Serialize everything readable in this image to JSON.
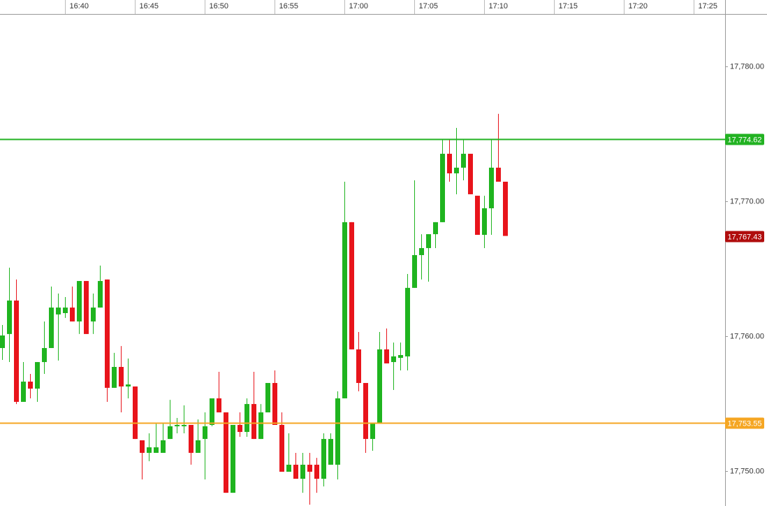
{
  "chart_data": {
    "type": "candlestick",
    "x": [
      995.5,
      996,
      996.5,
      997,
      997.5,
      998,
      998.5,
      999,
      999.5,
      1000,
      1000.5,
      1001,
      1001.5,
      1002,
      1002.5,
      1003,
      1003.5,
      1004,
      1004.5,
      1005,
      1005.5,
      1006,
      1006.5,
      1007,
      1007.5,
      1008,
      1008.5,
      1009,
      1009.5,
      1010,
      1010.5,
      1011,
      1011.5,
      1012,
      1012.5,
      1013,
      1013.5,
      1014,
      1014.5,
      1015,
      1015.5,
      1016,
      1016.5,
      1017,
      1017.5,
      1018,
      1018.5,
      1019,
      1019.5,
      1020,
      1020.5,
      1021,
      1021.5,
      1022,
      1022.5,
      1023,
      1023.5,
      1024,
      1024.5,
      1025,
      1025.5,
      1026,
      1026.5,
      1027,
      1027.5,
      1028,
      1028.5,
      1029,
      1029.5,
      1030,
      1030.5,
      1031,
      1031.5
    ],
    "open": [
      17759.12,
      17760.16,
      17762.64,
      17755.13,
      17756.63,
      17756.11,
      17758.08,
      17759.12,
      17761.61,
      17761.71,
      17762.12,
      17761.09,
      17764.09,
      17761.09,
      17762.12,
      17764.2,
      17756.17,
      17757.72,
      17756.27,
      17756.27,
      17752.28,
      17751.35,
      17751.35,
      17751.35,
      17752.38,
      17753.32,
      17753.32,
      17753.42,
      17751.35,
      17752.38,
      17753.42,
      17755.39,
      17754.35,
      17748.39,
      17753.42,
      17752.9,
      17754.97,
      17752.38,
      17754.35,
      17756.53,
      17753.42,
      17749.95,
      17750.47,
      17749.43,
      17750.47,
      17750.47,
      17749.43,
      17750.47,
      17750.47,
      17755.39,
      17768.45,
      17759.02,
      17756.53,
      17752.38,
      17753.58,
      17759.02,
      17758.08,
      17758.39,
      17758.5,
      17763.58,
      17766.01,
      17766.53,
      17767.56,
      17768.45,
      17773.52,
      17772.07,
      17772.49,
      17773.52,
      17770.41,
      17767.51,
      17769.48,
      17772.49,
      17771.45
    ],
    "high": [
      17760.83,
      17765.08,
      17764.2,
      17758.08,
      17757.2,
      17758.08,
      17761.09,
      17763.68,
      17763.16,
      17762.9,
      17763.68,
      17764.09,
      17764.09,
      17763.16,
      17765.23,
      17764.2,
      17758.76,
      17759.27,
      17758.34,
      17756.27,
      17752.28,
      17752.8,
      17753.58,
      17753.58,
      17755.28,
      17753.94,
      17754.87,
      17753.42,
      17753.83,
      17754.35,
      17755.39,
      17757.36,
      17754.35,
      17753.42,
      17754.35,
      17755.39,
      17757.36,
      17754.97,
      17756.53,
      17757.46,
      17754.35,
      17752.8,
      17751.35,
      17751.35,
      17751.35,
      17750.98,
      17752.8,
      17752.8,
      17755.91,
      17771.45,
      17768.45,
      17760.31,
      17756.53,
      17753.58,
      17760.31,
      17760.57,
      17759.53,
      17759.53,
      17764.61,
      17771.55,
      17767.56,
      17767.56,
      17768.45,
      17774.56,
      17774.56,
      17775.44,
      17774.56,
      17773.52,
      17770.41,
      17770.41,
      17774.56,
      17776.48,
      17771.45
    ],
    "low": [
      17758.24,
      17758.08,
      17754.97,
      17755.13,
      17755.39,
      17755.13,
      17757.2,
      17759.12,
      17758.19,
      17761.35,
      17761.09,
      17760.16,
      17760.16,
      17760.16,
      17762.12,
      17755.13,
      17756.17,
      17754.35,
      17755.39,
      17752.38,
      17749.38,
      17750.73,
      17751.35,
      17751.35,
      17752.38,
      17752.8,
      17752.8,
      17750.47,
      17751.35,
      17749.38,
      17753.32,
      17754.35,
      17748.39,
      17748.39,
      17752.54,
      17752.54,
      17752.38,
      17752.38,
      17754.35,
      17753.42,
      17749.95,
      17749.95,
      17749.43,
      17748.39,
      17747.51,
      17748.39,
      17748.86,
      17750.47,
      17749.38,
      17755.39,
      17759.02,
      17755.91,
      17751.35,
      17751.5,
      17753.58,
      17757.98,
      17756.01,
      17757.46,
      17757.46,
      17763.58,
      17764.2,
      17764.04,
      17766.53,
      17768.45,
      17771.45,
      17770.52,
      17771.55,
      17770.52,
      17767.51,
      17766.53,
      17767.51,
      17771.45,
      17767.51
    ],
    "close": [
      17760.05,
      17762.64,
      17755.13,
      17756.63,
      17756.11,
      17758.08,
      17759.12,
      17762.12,
      17762.12,
      17762.12,
      17761.09,
      17764.09,
      17760.16,
      17762.12,
      17764.09,
      17756.17,
      17757.72,
      17756.27,
      17756.42,
      17752.38,
      17751.35,
      17751.76,
      17751.76,
      17752.28,
      17753.32,
      17753.42,
      17753.42,
      17751.35,
      17752.28,
      17753.32,
      17755.39,
      17754.35,
      17748.39,
      17753.42,
      17752.9,
      17754.97,
      17752.38,
      17754.35,
      17756.53,
      17753.42,
      17749.95,
      17750.47,
      17749.43,
      17750.47,
      17749.95,
      17749.43,
      17752.38,
      17752.38,
      17755.39,
      17768.45,
      17759.02,
      17756.53,
      17752.38,
      17753.58,
      17759.02,
      17757.98,
      17758.5,
      17758.6,
      17763.58,
      17766.01,
      17766.53,
      17767.56,
      17768.45,
      17773.52,
      17772.07,
      17772.49,
      17773.52,
      17770.52,
      17767.51,
      17769.48,
      17772.49,
      17771.45,
      17767.43
    ],
    "up_color": "#1fb41f",
    "down_color": "#e8141b",
    "xlim": [
      995.35,
      1047.25
    ],
    "xticks": [
      {
        "value": 1000,
        "label": "16:40"
      },
      {
        "value": 1005,
        "label": "16:45"
      },
      {
        "value": 1010,
        "label": "16:50"
      },
      {
        "value": 1015,
        "label": "16:55"
      },
      {
        "value": 1020,
        "label": "17:00"
      },
      {
        "value": 1025,
        "label": "17:05"
      },
      {
        "value": 1030,
        "label": "17:10"
      },
      {
        "value": 1035,
        "label": "17:15"
      },
      {
        "value": 1040,
        "label": "17:20"
      },
      {
        "value": 1045,
        "label": "17:25"
      }
    ],
    "ylim": [
      17747.41,
      17783.78
    ],
    "yticks": [
      {
        "value": 17750,
        "label": "17,750.00"
      },
      {
        "value": 17760,
        "label": "17,760.00"
      },
      {
        "value": 17770,
        "label": "17,770.00"
      },
      {
        "value": 17780,
        "label": "17,780.00"
      }
    ],
    "lines": [
      {
        "value": 17774.62,
        "label": "17,774.62",
        "color": "#22b222"
      },
      {
        "value": 17753.55,
        "label": "17,753.55",
        "color": "#f5a623"
      }
    ],
    "last_price": {
      "value": 17767.43,
      "label": "17,767.43",
      "color": "#b00d0d"
    }
  }
}
